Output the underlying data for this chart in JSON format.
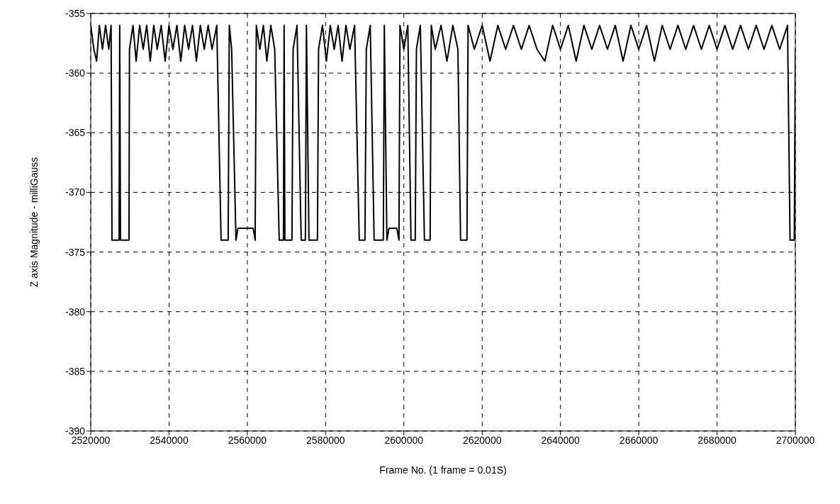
{
  "chart_data": {
    "type": "line",
    "xlabel": "Frame No. (1 frame = 0.01S)",
    "ylabel": "Z axis Magnitude - milliGauss",
    "color": "#000000",
    "grid": true,
    "xlim": [
      2520000,
      2700000
    ],
    "ylim": [
      -390,
      -355
    ],
    "xticks": [
      2520000,
      2540000,
      2560000,
      2580000,
      2600000,
      2620000,
      2640000,
      2660000,
      2680000,
      2700000
    ],
    "yticks": [
      -390,
      -385,
      -380,
      -375,
      -370,
      -365,
      -360,
      -355
    ],
    "x": [
      2520000,
      2520800,
      2521500,
      2522200,
      2523000,
      2523800,
      2524600,
      2525200,
      2525430,
      2527240,
      2527400,
      2527600,
      2529770,
      2529900,
      2530800,
      2531600,
      2532500,
      2533400,
      2534300,
      2535200,
      2536100,
      2537000,
      2538000,
      2539000,
      2540000,
      2541000,
      2542000,
      2543000,
      2544000,
      2545000,
      2546000,
      2547000,
      2548000,
      2549000,
      2550000,
      2551000,
      2552200,
      2553300,
      2555110,
      2555400,
      2556000,
      2557100,
      2557600,
      2561500,
      2562000,
      2562300,
      2563200,
      2564100,
      2565000,
      2566000,
      2567000,
      2568150,
      2569230,
      2569400,
      2569600,
      2571400,
      2571700,
      2572700,
      2573760,
      2574840,
      2575100,
      2575750,
      2577920,
      2578200,
      2579200,
      2580200,
      2581200,
      2582200,
      2583200,
      2584200,
      2585200,
      2586200,
      2587400,
      2588600,
      2590050,
      2590400,
      2591400,
      2592400,
      2594750,
      2595000,
      2595660,
      2596200,
      2598200,
      2598740,
      2599000,
      2600000,
      2601000,
      2601810,
      2602900,
      2603200,
      2604200,
      2605250,
      2606700,
      2607000,
      2608000,
      2609500,
      2611000,
      2612500,
      2613800,
      2614480,
      2616110,
      2616400,
      2618000,
      2620000,
      2622000,
      2624000,
      2626000,
      2628000,
      2630000,
      2632000,
      2634000,
      2636000,
      2638000,
      2640000,
      2642000,
      2644000,
      2646000,
      2648000,
      2650000,
      2652000,
      2654000,
      2656000,
      2658000,
      2660000,
      2662000,
      2664000,
      2666000,
      2668000,
      2670000,
      2672000,
      2674000,
      2676000,
      2678000,
      2680000,
      2682000,
      2684000,
      2686000,
      2688000,
      2690000,
      2692000,
      2694000,
      2696000,
      2698000,
      2698650,
      2699730,
      2700000
    ],
    "values": [
      -356,
      -358,
      -359,
      -356,
      -358,
      -356,
      -358,
      -356,
      -374,
      -374,
      -356,
      -374,
      -374,
      -358,
      -356,
      -359,
      -356,
      -358,
      -356,
      -359,
      -356,
      -358,
      -356,
      -359,
      -356,
      -358,
      -356,
      -359,
      -356,
      -358,
      -356,
      -359,
      -356,
      -358,
      -356,
      -358,
      -356,
      -374,
      -374,
      -356,
      -358,
      -374,
      -373,
      -373,
      -374,
      -356,
      -358,
      -356,
      -359,
      -356,
      -358,
      -374,
      -374,
      -356,
      -374,
      -374,
      -358,
      -356,
      -374,
      -374,
      -356,
      -374,
      -374,
      -358,
      -356,
      -359,
      -356,
      -358,
      -356,
      -359,
      -356,
      -358,
      -356,
      -374,
      -374,
      -358,
      -356,
      -374,
      -374,
      -356,
      -374,
      -373,
      -373,
      -374,
      -356,
      -358,
      -356,
      -374,
      -374,
      -358,
      -356,
      -374,
      -374,
      -356,
      -358,
      -356,
      -359,
      -356,
      -358,
      -374,
      -374,
      -356,
      -358,
      -356,
      -359,
      -356,
      -358,
      -356,
      -358,
      -356,
      -358,
      -359,
      -356,
      -358,
      -356,
      -359,
      -356,
      -358,
      -356,
      -358,
      -356,
      -359,
      -356,
      -358,
      -356,
      -359,
      -356,
      -358,
      -356,
      -358,
      -356,
      -358,
      -356,
      -358,
      -356,
      -358,
      -356,
      -358,
      -356,
      -358,
      -356,
      -358,
      -356,
      -374,
      -374,
      -358
    ]
  }
}
